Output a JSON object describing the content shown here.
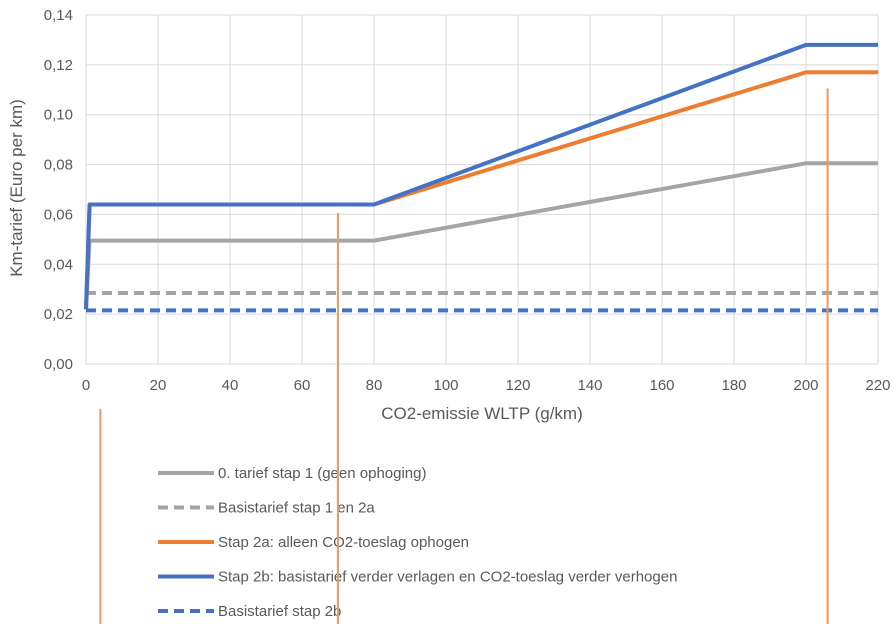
{
  "chart_data": {
    "type": "line",
    "xlabel": "CO2-emissie WLTP (g/km)",
    "ylabel": "Km-tarief (Euro per km)",
    "xlim": [
      0,
      220
    ],
    "ylim": [
      0,
      0.14
    ],
    "x_ticks": [
      0,
      20,
      40,
      60,
      80,
      100,
      120,
      140,
      160,
      180,
      200,
      220
    ],
    "x_tick_labels": [
      "0",
      "20",
      "40",
      "60",
      "80",
      "100",
      "120",
      "140",
      "160",
      "180",
      "200",
      "220"
    ],
    "y_ticks": [
      0,
      0.02,
      0.04,
      0.06,
      0.08,
      0.1,
      0.12,
      0.14
    ],
    "y_tick_labels": [
      "0,00",
      "0,02",
      "0,04",
      "0,06",
      "0,08",
      "0,10",
      "0,12",
      "0,14"
    ],
    "grid": true,
    "legend_position": "bottom",
    "series": [
      {
        "name": "0. tarief stap 1 (geen ophoging)",
        "color": "#a5a5a5",
        "dash": "solid",
        "x": [
          0,
          1,
          80,
          200,
          220
        ],
        "y": [
          0.022,
          0.0495,
          0.0495,
          0.0805,
          0.0805
        ]
      },
      {
        "name": "Basistarief stap 1 en 2a",
        "color": "#a5a5a5",
        "dash": "dashed",
        "x": [
          0,
          220
        ],
        "y": [
          0.0285,
          0.0285
        ]
      },
      {
        "name": "Stap 2a: alleen CO2-toeslag ophogen",
        "color": "#ed7d31",
        "dash": "solid",
        "x": [
          0,
          1,
          80,
          200,
          220
        ],
        "y": [
          0.022,
          0.064,
          0.064,
          0.117,
          0.117
        ]
      },
      {
        "name": "Stap 2b: basistarief verder verlagen en CO2-toeslag verder verhogen",
        "color": "#4472c4",
        "dash": "solid",
        "x": [
          0,
          1,
          80,
          200,
          220
        ],
        "y": [
          0.022,
          0.064,
          0.064,
          0.128,
          0.128
        ]
      },
      {
        "name": "Basistarief stap 2b",
        "color": "#4472c4",
        "dash": "dashed",
        "x": [
          0,
          220
        ],
        "y": [
          0.0215,
          0.0215
        ]
      }
    ],
    "annotation_lines": {
      "color": "#f0995a",
      "items": [
        {
          "x": 4,
          "y_top": -0.018
        },
        {
          "x": 70,
          "y_top": 0.0605
        },
        {
          "x": 206,
          "y_top": 0.1105
        }
      ]
    }
  }
}
